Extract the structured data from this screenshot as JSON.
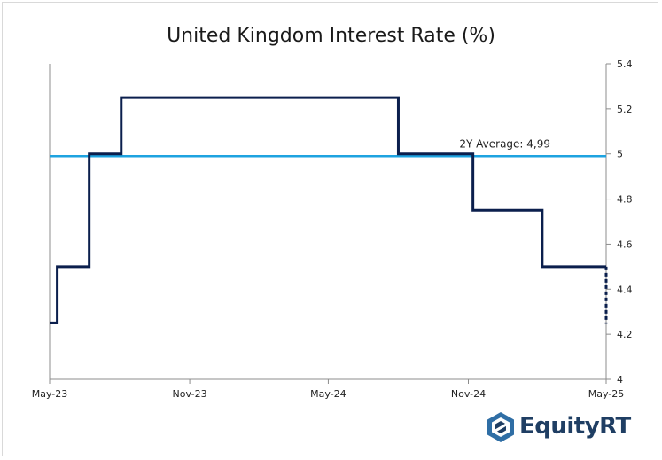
{
  "chart_data": {
    "type": "line",
    "title": "United Kingdom Interest Rate (%)",
    "xlabel": "",
    "ylabel": "",
    "x_ticks": [
      "May-23",
      "Nov-23",
      "May-24",
      "Nov-24",
      "May-25"
    ],
    "y_ticks": [
      "4",
      "4.2",
      "4.4",
      "4.6",
      "4.8",
      "5",
      "5.2",
      "5.4"
    ],
    "ylim": [
      4,
      5.4
    ],
    "xlim": [
      "2023-05",
      "2025-05"
    ],
    "y_axis_side": "right",
    "grid": false,
    "series": [
      {
        "style": "step",
        "color": "#0b1f4d",
        "points": [
          {
            "x": "2023-05-01",
            "y": 4.25
          },
          {
            "x": "2023-05-11",
            "y": 4.5
          },
          {
            "x": "2023-06-22",
            "y": 5.0
          },
          {
            "x": "2023-08-03",
            "y": 5.25
          },
          {
            "x": "2024-08-01",
            "y": 5.0
          },
          {
            "x": "2024-11-07",
            "y": 4.75
          },
          {
            "x": "2025-02-06",
            "y": 4.5
          },
          {
            "x": "2025-05-01",
            "y": 4.5
          }
        ],
        "dashed_end": {
          "x": "2025-05-01",
          "y_from": 4.5,
          "y_to": 4.25
        }
      }
    ],
    "reference_lines": [
      {
        "label": "2Y Average: 4,99",
        "value": 4.99,
        "color": "#1ea3e0"
      }
    ]
  },
  "brand": {
    "name": "EquityRT"
  }
}
